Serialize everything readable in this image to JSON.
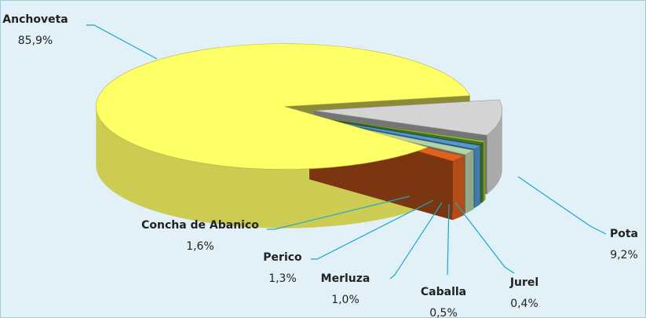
{
  "chart_data": {
    "type": "pie3d",
    "categories": [
      "Pota",
      "Jurel",
      "Caballa",
      "Merluza",
      "Perico",
      "Concha de Abanico",
      "Anchoveta"
    ],
    "values": [
      9.2,
      0.4,
      0.5,
      1.0,
      1.3,
      1.6,
      85.9
    ],
    "value_labels": [
      "9,2%",
      "0,4%",
      "0,5%",
      "1,0%",
      "1,3%",
      "1,6%",
      "85,9%"
    ],
    "colors": [
      "#d4d4d4",
      "#8fc43a",
      "#4d7a2a",
      "#4f9ad2",
      "#b5d3a8",
      "#e0601e",
      "#ffff66"
    ]
  }
}
